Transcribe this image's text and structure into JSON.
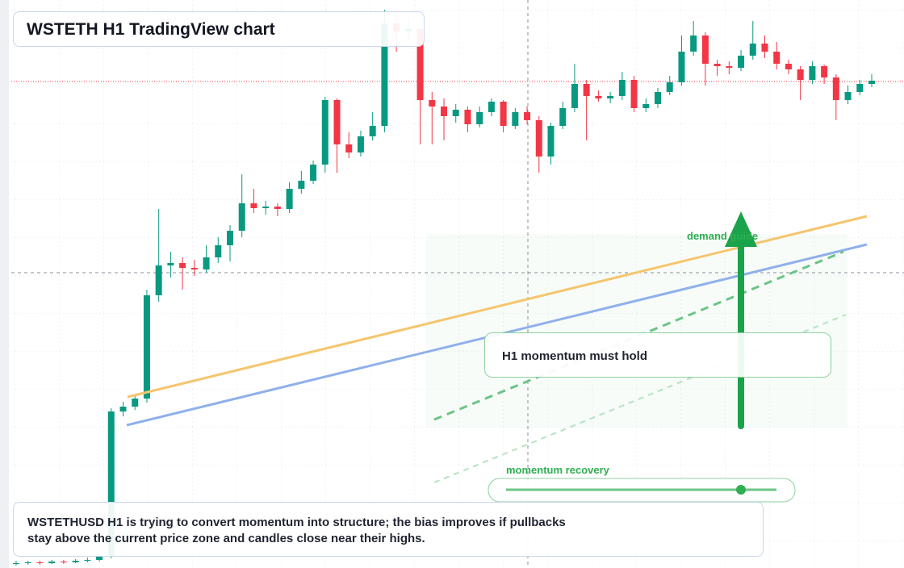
{
  "chart_data": {
    "type": "candlestick",
    "title": "WSTETH H1 TradingView chart",
    "up_color": "#089981",
    "down_color": "#f23645",
    "ylim": [
      0,
      704
    ],
    "ohlc": [
      [
        5,
        9,
        3,
        6
      ],
      [
        6,
        9,
        4,
        7
      ],
      [
        7,
        9,
        4,
        6
      ],
      [
        6,
        10,
        5,
        8
      ],
      [
        8,
        10,
        5,
        7
      ],
      [
        7,
        11,
        6,
        9
      ],
      [
        9,
        13,
        7,
        10
      ],
      [
        10,
        18,
        8,
        14
      ],
      [
        14,
        198,
        12,
        194
      ],
      [
        194,
        206,
        188,
        200
      ],
      [
        200,
        214,
        196,
        210
      ],
      [
        210,
        345,
        205,
        338
      ],
      [
        338,
        445,
        330,
        375
      ],
      [
        375,
        392,
        360,
        378
      ],
      [
        378,
        385,
        345,
        372
      ],
      [
        372,
        382,
        362,
        370
      ],
      [
        370,
        400,
        366,
        385
      ],
      [
        385,
        410,
        378,
        400
      ],
      [
        400,
        425,
        380,
        418
      ],
      [
        418,
        488,
        410,
        452
      ],
      [
        452,
        470,
        440,
        446
      ],
      [
        446,
        455,
        438,
        448
      ],
      [
        448,
        452,
        436,
        445
      ],
      [
        445,
        478,
        440,
        470
      ],
      [
        470,
        492,
        464,
        480
      ],
      [
        480,
        505,
        476,
        500
      ],
      [
        500,
        584,
        490,
        580
      ],
      [
        580,
        582,
        490,
        525
      ],
      [
        525,
        540,
        508,
        515
      ],
      [
        515,
        542,
        510,
        535
      ],
      [
        535,
        565,
        530,
        548
      ],
      [
        548,
        692,
        540,
        675
      ],
      [
        675,
        690,
        640,
        665
      ],
      [
        665,
        680,
        655,
        668
      ],
      [
        668,
        670,
        525,
        580
      ],
      [
        580,
        590,
        525,
        572
      ],
      [
        572,
        582,
        530,
        560
      ],
      [
        560,
        575,
        552,
        568
      ],
      [
        568,
        572,
        540,
        550
      ],
      [
        550,
        572,
        546,
        565
      ],
      [
        565,
        582,
        560,
        578
      ],
      [
        578,
        580,
        540,
        548
      ],
      [
        548,
        570,
        544,
        565
      ],
      [
        565,
        572,
        550,
        555
      ],
      [
        555,
        560,
        490,
        510
      ],
      [
        510,
        552,
        500,
        548
      ],
      [
        548,
        578,
        544,
        570
      ],
      [
        570,
        625,
        565,
        600
      ],
      [
        600,
        605,
        530,
        585
      ],
      [
        585,
        592,
        578,
        582
      ],
      [
        582,
        590,
        576,
        585
      ],
      [
        585,
        615,
        580,
        605
      ],
      [
        605,
        610,
        565,
        570
      ],
      [
        570,
        582,
        565,
        575
      ],
      [
        575,
        595,
        570,
        590
      ],
      [
        590,
        610,
        586,
        602
      ],
      [
        602,
        660,
        598,
        640
      ],
      [
        640,
        678,
        635,
        660
      ],
      [
        660,
        664,
        598,
        625
      ],
      [
        625,
        630,
        610,
        622
      ],
      [
        622,
        628,
        612,
        620
      ],
      [
        620,
        642,
        616,
        635
      ],
      [
        635,
        678,
        630,
        650
      ],
      [
        650,
        660,
        632,
        640
      ],
      [
        640,
        652,
        618,
        625
      ],
      [
        625,
        630,
        612,
        618
      ],
      [
        618,
        622,
        580,
        605
      ],
      [
        605,
        628,
        600,
        622
      ],
      [
        622,
        624,
        600,
        608
      ],
      [
        608,
        612,
        555,
        580
      ],
      [
        580,
        598,
        575,
        590
      ],
      [
        590,
        605,
        586,
        600
      ],
      [
        600,
        612,
        596,
        604
      ]
    ],
    "annotations": [
      "H1 momentum must hold",
      "demand guide",
      "momentum recovery"
    ],
    "note": "WSTETHUSD H1 is trying to convert momentum into structure; the bias improves if pullbacks stay above the current price zone and candles close near their highs."
  }
}
